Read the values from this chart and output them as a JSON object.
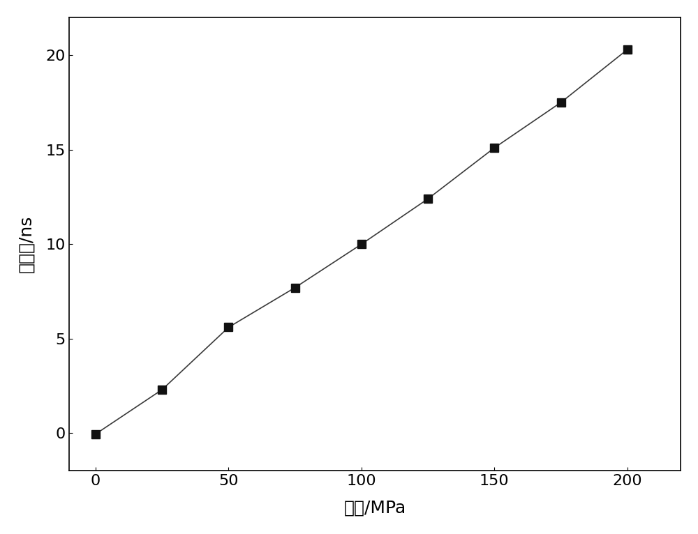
{
  "x": [
    0,
    25,
    50,
    75,
    100,
    125,
    150,
    175,
    200
  ],
  "y": [
    -0.05,
    2.3,
    5.6,
    7.7,
    10.0,
    12.4,
    15.1,
    17.5,
    20.3
  ],
  "xlabel": "应力/MPa",
  "ylabel": "声时差/ns",
  "xlim": [
    -10,
    220
  ],
  "ylim": [
    -2,
    22
  ],
  "xticks": [
    0,
    50,
    100,
    150,
    200
  ],
  "yticks": [
    0,
    5,
    10,
    15,
    20
  ],
  "line_color": "#3a3a3a",
  "marker": "s",
  "marker_color": "#111111",
  "marker_size": 8,
  "line_width": 1.2,
  "background_color": "#ffffff",
  "xlabel_fontsize": 18,
  "ylabel_fontsize": 18,
  "tick_fontsize": 16,
  "spine_linewidth": 1.2
}
